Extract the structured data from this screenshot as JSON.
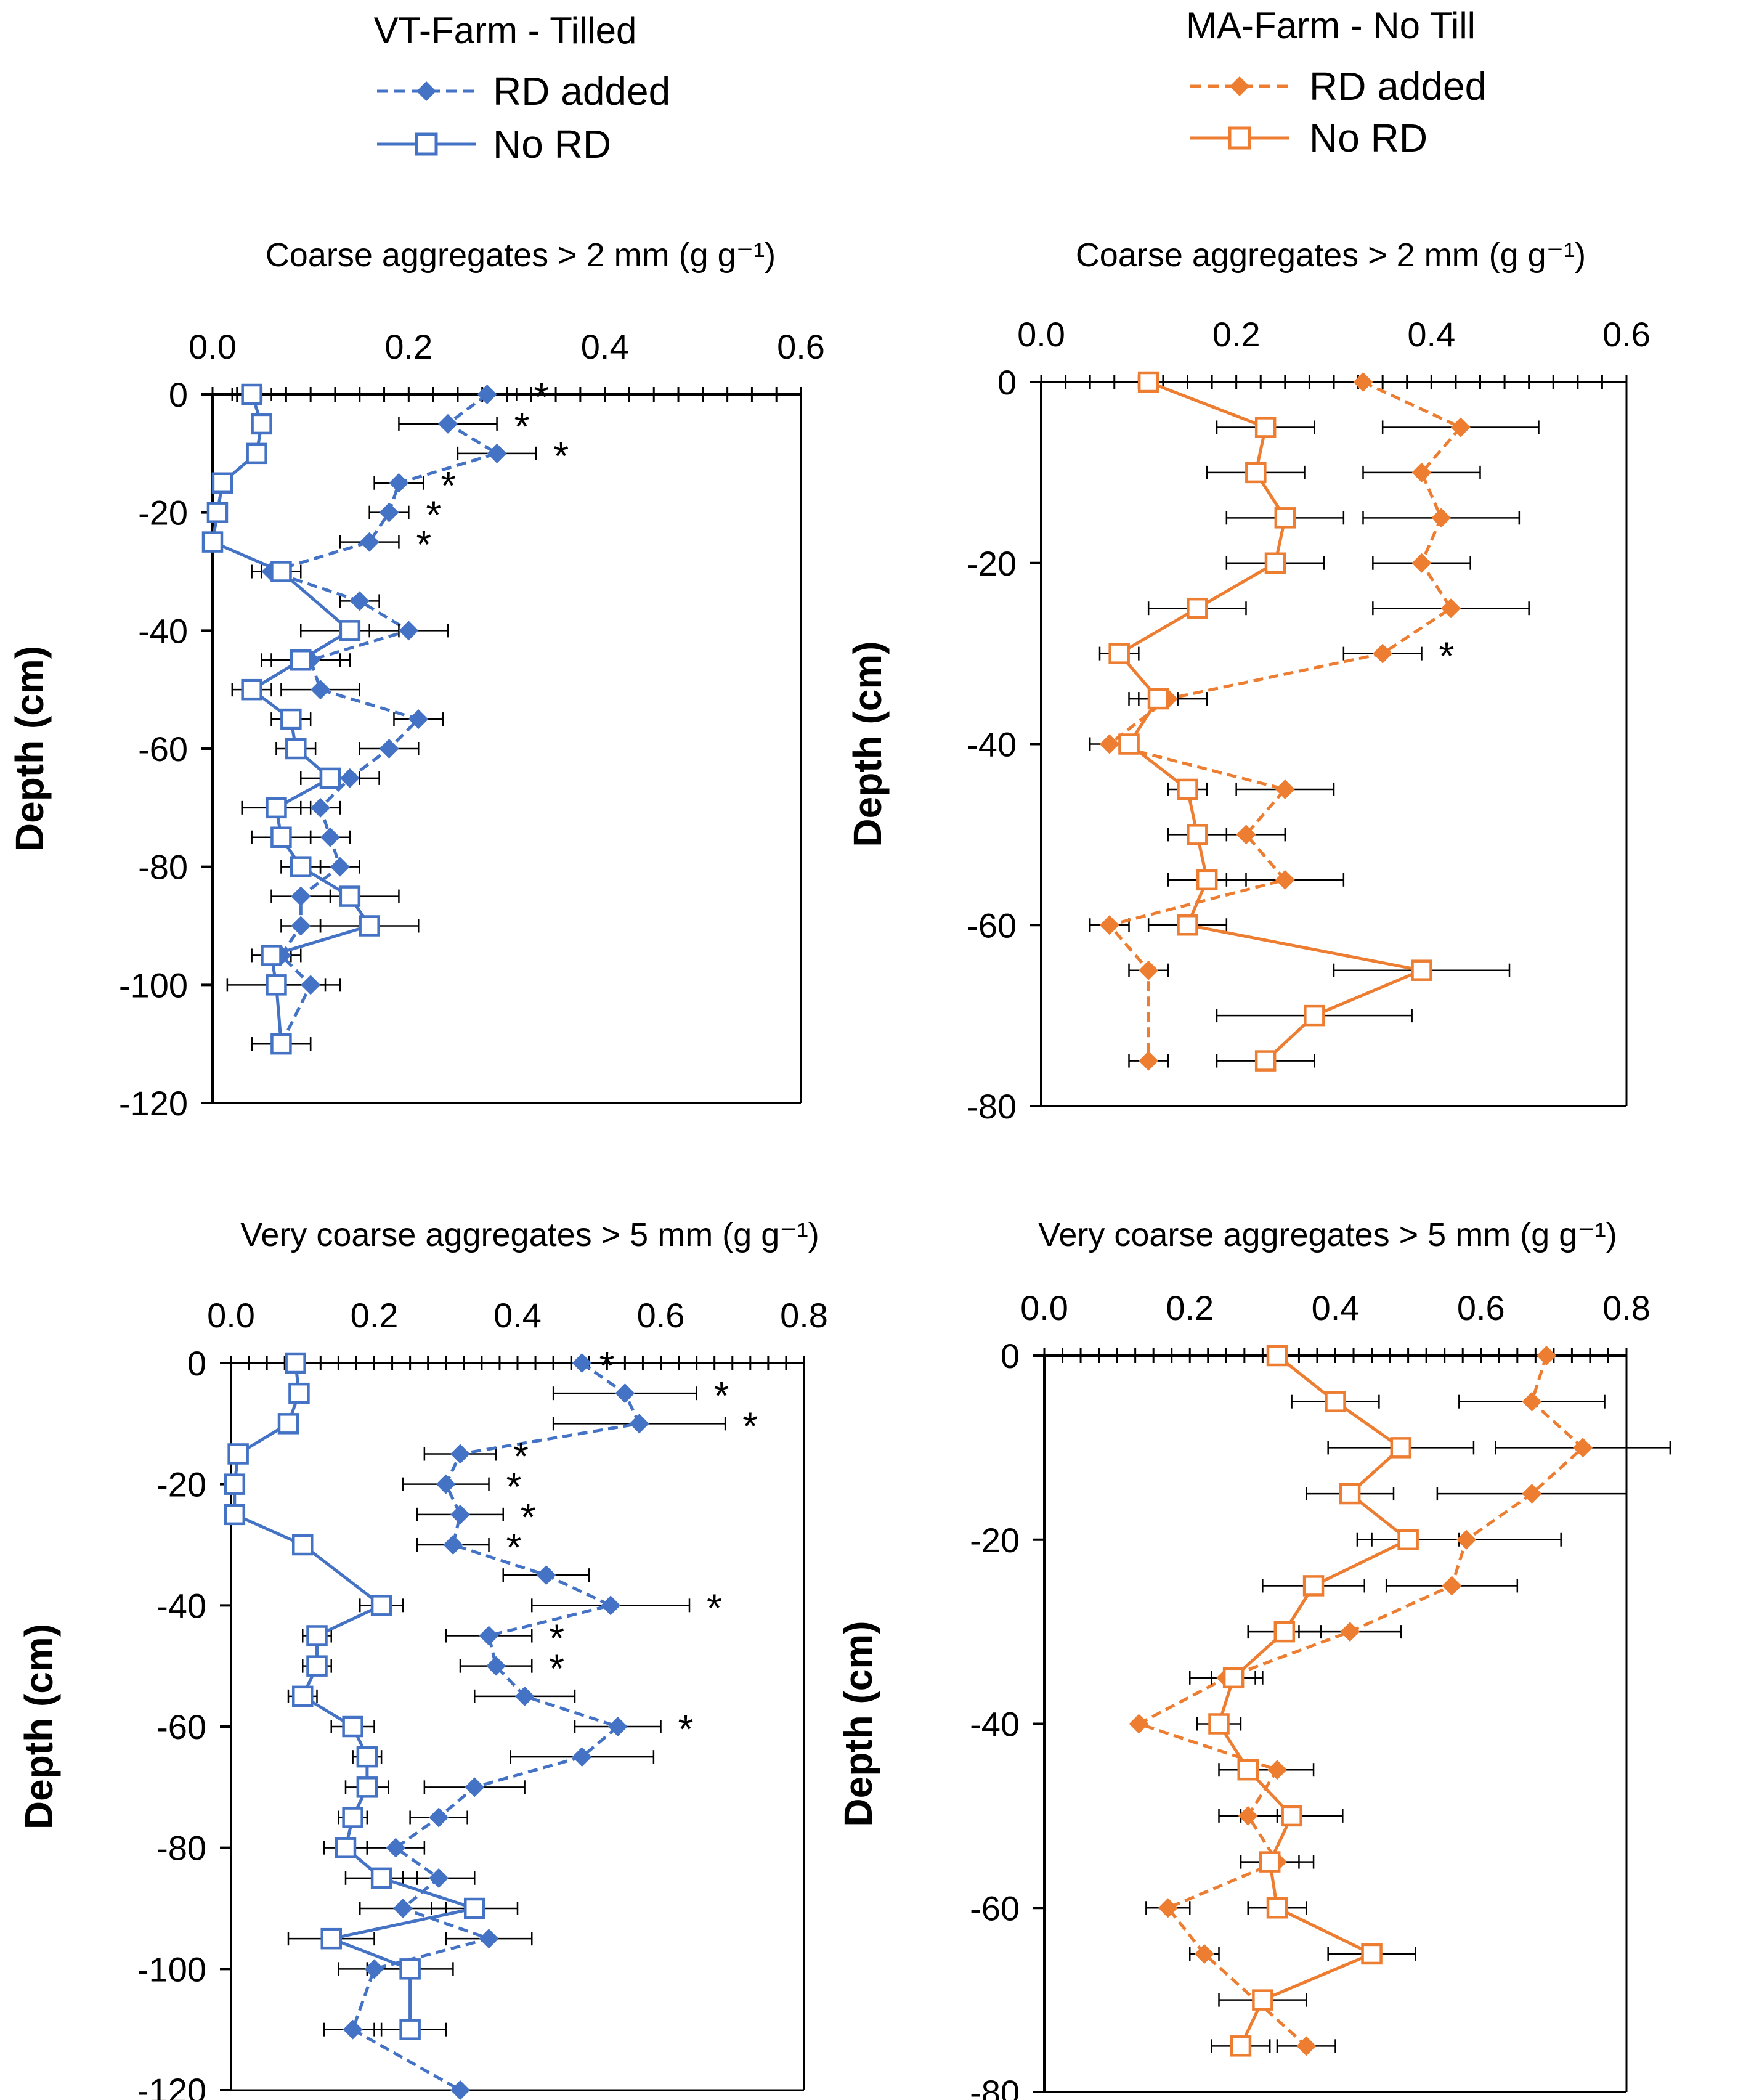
{
  "colors": {
    "vt": "#4472C4",
    "ma": "#ED7D31",
    "err": "#000000",
    "axis": "#000000"
  },
  "farms": [
    {
      "id": "vt",
      "title": "VT-Farm - Tilled",
      "color": "#4472C4",
      "legend": {
        "added": "RD added",
        "noRD": "No RD"
      }
    },
    {
      "id": "ma",
      "title": "MA-Farm - No Till",
      "color": "#ED7D31",
      "legend": {
        "added": "RD added",
        "noRD": "No RD"
      }
    }
  ],
  "chart_data": [
    {
      "id": "vt-coarse",
      "farm": "vt",
      "type": "line",
      "title": "Coarse aggregates > 2 mm (g g⁻¹)",
      "ylabel": "Depth (cm)",
      "xlim": [
        0,
        0.6
      ],
      "xticks": [
        0,
        0.2,
        0.4,
        0.6
      ],
      "xtick_labels": [
        "0.0",
        "0.2",
        "0.4",
        "0.6"
      ],
      "ylim": [
        -120,
        0
      ],
      "yticks": [
        0,
        -20,
        -40,
        -60,
        -80,
        -100,
        -120
      ],
      "ytick_labels": [
        "0",
        "-20",
        "-40",
        "-60",
        "-80",
        "-100",
        "-120"
      ],
      "series": [
        {
          "name": "RD added",
          "style": "dashed-diamond",
          "points": [
            [
              0.28,
              0,
              0.03
            ],
            [
              0.24,
              -5,
              0.05
            ],
            [
              0.29,
              -10,
              0.04
            ],
            [
              0.19,
              -15,
              0.025
            ],
            [
              0.18,
              -20,
              0.02
            ],
            [
              0.16,
              -25,
              0.03
            ],
            [
              0.06,
              -30,
              0.02
            ],
            [
              0.15,
              -35,
              0.02
            ],
            [
              0.2,
              -40,
              0.04
            ],
            [
              0.1,
              -45,
              0.04
            ],
            [
              0.11,
              -50,
              0.04
            ],
            [
              0.21,
              -55,
              0.025
            ],
            [
              0.18,
              -60,
              0.03
            ],
            [
              0.14,
              -65,
              0.03
            ],
            [
              0.11,
              -70,
              0.02
            ],
            [
              0.12,
              -75,
              0.02
            ],
            [
              0.13,
              -80,
              0.02
            ],
            [
              0.09,
              -85,
              0.03
            ],
            [
              0.09,
              -90,
              0.02
            ],
            [
              0.07,
              -95,
              0.02
            ],
            [
              0.1,
              -100,
              0.03
            ],
            [
              0.07,
              -110,
              0.03
            ]
          ]
        },
        {
          "name": "No RD",
          "style": "solid-square",
          "points": [
            [
              0.04,
              0,
              0.02
            ],
            [
              0.05,
              -5,
              0.01
            ],
            [
              0.045,
              -10,
              0.01
            ],
            [
              0.01,
              -15,
              0.005
            ],
            [
              0.005,
              -20,
              0.005
            ],
            [
              0.0,
              -25,
              0.005
            ],
            [
              0.07,
              -30,
              0.02
            ],
            [
              0.14,
              -40,
              0.05
            ],
            [
              0.09,
              -45,
              0.04
            ],
            [
              0.04,
              -50,
              0.02
            ],
            [
              0.08,
              -55,
              0.02
            ],
            [
              0.085,
              -60,
              0.02
            ],
            [
              0.12,
              -65,
              0.03
            ],
            [
              0.065,
              -70,
              0.035
            ],
            [
              0.07,
              -75,
              0.03
            ],
            [
              0.09,
              -80,
              0.02
            ],
            [
              0.14,
              -85,
              0.05
            ],
            [
              0.16,
              -90,
              0.05
            ],
            [
              0.06,
              -95,
              0.02
            ],
            [
              0.065,
              -100,
              0.05
            ],
            [
              0.07,
              -110,
              0.03
            ]
          ]
        }
      ],
      "significance": [
        0,
        -5,
        -10,
        -15,
        -20,
        -25
      ],
      "star_label": "*"
    },
    {
      "id": "ma-coarse",
      "farm": "ma",
      "type": "line",
      "title": "Coarse aggregates > 2 mm (g g⁻¹)",
      "ylabel": "Depth (cm)",
      "xlim": [
        0,
        0.6
      ],
      "xticks": [
        0,
        0.2,
        0.4,
        0.6
      ],
      "xtick_labels": [
        "0.0",
        "0.2",
        "0.4",
        "0.6"
      ],
      "ylim": [
        -80,
        0
      ],
      "yticks": [
        0,
        -20,
        -40,
        -60,
        -80
      ],
      "ytick_labels": [
        "0",
        "-20",
        "-40",
        "-60",
        "-80"
      ],
      "series": [
        {
          "name": "RD added",
          "style": "dashed-diamond",
          "points": [
            [
              0.33,
              0,
              0.0
            ],
            [
              0.43,
              -5,
              0.08
            ],
            [
              0.39,
              -10,
              0.06
            ],
            [
              0.41,
              -15,
              0.08
            ],
            [
              0.39,
              -20,
              0.05
            ],
            [
              0.42,
              -25,
              0.08
            ],
            [
              0.35,
              -30,
              0.04
            ],
            [
              0.13,
              -35,
              0.04
            ],
            [
              0.07,
              -40,
              0.02
            ],
            [
              0.25,
              -45,
              0.05
            ],
            [
              0.21,
              -50,
              0.04
            ],
            [
              0.25,
              -55,
              0.06
            ],
            [
              0.07,
              -60,
              0.02
            ],
            [
              0.11,
              -65,
              0.02
            ],
            [
              0.11,
              -75,
              0.02
            ]
          ]
        },
        {
          "name": "No RD",
          "style": "solid-square",
          "points": [
            [
              0.11,
              0,
              0.0
            ],
            [
              0.23,
              -5,
              0.05
            ],
            [
              0.22,
              -10,
              0.05
            ],
            [
              0.25,
              -15,
              0.06
            ],
            [
              0.24,
              -20,
              0.05
            ],
            [
              0.16,
              -25,
              0.05
            ],
            [
              0.08,
              -30,
              0.02
            ],
            [
              0.12,
              -35,
              0.02
            ],
            [
              0.09,
              -40,
              0.01
            ],
            [
              0.15,
              -45,
              0.02
            ],
            [
              0.16,
              -50,
              0.03
            ],
            [
              0.17,
              -55,
              0.04
            ],
            [
              0.15,
              -60,
              0.04
            ],
            [
              0.39,
              -65,
              0.09
            ],
            [
              0.28,
              -70,
              0.1
            ],
            [
              0.23,
              -75,
              0.05
            ]
          ]
        }
      ],
      "significance": [
        -30
      ],
      "star_label": "*"
    },
    {
      "id": "vt-very-coarse",
      "farm": "vt",
      "type": "line",
      "title": "Very coarse aggregates > 5 mm (g g⁻¹)",
      "ylabel": "Depth (cm)",
      "xlim": [
        0,
        0.8
      ],
      "xticks": [
        0,
        0.2,
        0.4,
        0.6,
        0.8
      ],
      "xtick_labels": [
        "0.0",
        "0.2",
        "0.4",
        "0.6",
        "0.8"
      ],
      "ylim": [
        -120,
        0
      ],
      "yticks": [
        0,
        -20,
        -40,
        -60,
        -80,
        -100,
        -120
      ],
      "ytick_labels": [
        "0",
        "-20",
        "-40",
        "-60",
        "-80",
        "-100",
        "-120"
      ],
      "series": [
        {
          "name": "RD added",
          "style": "dashed-diamond",
          "points": [
            [
              0.49,
              0,
              0.0
            ],
            [
              0.55,
              -5,
              0.1
            ],
            [
              0.57,
              -10,
              0.12
            ],
            [
              0.32,
              -15,
              0.05
            ],
            [
              0.3,
              -20,
              0.06
            ],
            [
              0.32,
              -25,
              0.06
            ],
            [
              0.31,
              -30,
              0.05
            ],
            [
              0.44,
              -35,
              0.06
            ],
            [
              0.53,
              -40,
              0.11
            ],
            [
              0.36,
              -45,
              0.06
            ],
            [
              0.37,
              -50,
              0.05
            ],
            [
              0.41,
              -55,
              0.07
            ],
            [
              0.54,
              -60,
              0.06
            ],
            [
              0.49,
              -65,
              0.1
            ],
            [
              0.34,
              -70,
              0.07
            ],
            [
              0.29,
              -75,
              0.04
            ],
            [
              0.23,
              -80,
              0.04
            ],
            [
              0.29,
              -85,
              0.05
            ],
            [
              0.24,
              -90,
              0.06
            ],
            [
              0.36,
              -95,
              0.06
            ],
            [
              0.2,
              -100,
              0.05
            ],
            [
              0.17,
              -110,
              0.04
            ],
            [
              0.32,
              -120,
              0.0
            ]
          ]
        },
        {
          "name": "No RD",
          "style": "solid-square",
          "points": [
            [
              0.09,
              0,
              0.0
            ],
            [
              0.095,
              -5,
              0.0
            ],
            [
              0.08,
              -10,
              0.01
            ],
            [
              0.01,
              -15,
              0.005
            ],
            [
              0.005,
              -20,
              0.005
            ],
            [
              0.005,
              -25,
              0.005
            ],
            [
              0.1,
              -30,
              0.01
            ],
            [
              0.21,
              -40,
              0.03
            ],
            [
              0.12,
              -45,
              0.02
            ],
            [
              0.12,
              -50,
              0.02
            ],
            [
              0.1,
              -55,
              0.02
            ],
            [
              0.17,
              -60,
              0.03
            ],
            [
              0.19,
              -65,
              0.02
            ],
            [
              0.19,
              -70,
              0.03
            ],
            [
              0.17,
              -75,
              0.02
            ],
            [
              0.16,
              -80,
              0.03
            ],
            [
              0.21,
              -85,
              0.05
            ],
            [
              0.34,
              -90,
              0.06
            ],
            [
              0.14,
              -95,
              0.06
            ],
            [
              0.25,
              -100,
              0.06
            ],
            [
              0.25,
              -110,
              0.05
            ]
          ]
        }
      ],
      "significance": [
        0,
        -5,
        -10,
        -15,
        -20,
        -25,
        -30,
        -40,
        -45,
        -50,
        -60
      ],
      "star_label": "*"
    },
    {
      "id": "ma-very-coarse",
      "farm": "ma",
      "type": "line",
      "title": "Very coarse aggregates > 5 mm (g g⁻¹)",
      "ylabel": "Depth (cm)",
      "xlim": [
        0,
        0.8
      ],
      "xticks": [
        0,
        0.2,
        0.4,
        0.6,
        0.8
      ],
      "xtick_labels": [
        "0.0",
        "0.2",
        "0.4",
        "0.6",
        "0.8"
      ],
      "ylim": [
        -80,
        0
      ],
      "yticks": [
        0,
        -20,
        -40,
        -60,
        -80
      ],
      "ytick_labels": [
        "0",
        "-20",
        "-40",
        "-60",
        "-80"
      ],
      "series": [
        {
          "name": "RD added",
          "style": "dashed-diamond",
          "points": [
            [
              0.69,
              0,
              0.0
            ],
            [
              0.67,
              -5,
              0.1
            ],
            [
              0.74,
              -10,
              0.12
            ],
            [
              0.67,
              -15,
              0.13
            ],
            [
              0.58,
              -20,
              0.13
            ],
            [
              0.56,
              -25,
              0.09
            ],
            [
              0.42,
              -30,
              0.07
            ],
            [
              0.25,
              -35,
              0.05
            ],
            [
              0.13,
              -40,
              0.0
            ],
            [
              0.32,
              -45,
              0.05
            ],
            [
              0.28,
              -50,
              0.04
            ],
            [
              0.32,
              -55,
              0.05
            ],
            [
              0.17,
              -60,
              0.03
            ],
            [
              0.22,
              -65,
              0.02
            ],
            [
              0.36,
              -75,
              0.04
            ]
          ]
        },
        {
          "name": "No RD",
          "style": "solid-square",
          "points": [
            [
              0.32,
              0,
              0.0
            ],
            [
              0.4,
              -5,
              0.06
            ],
            [
              0.49,
              -10,
              0.1
            ],
            [
              0.42,
              -15,
              0.06
            ],
            [
              0.5,
              -20,
              0.07
            ],
            [
              0.37,
              -25,
              0.07
            ],
            [
              0.33,
              -30,
              0.05
            ],
            [
              0.26,
              -35,
              0.03
            ],
            [
              0.24,
              -40,
              0.03
            ],
            [
              0.28,
              -45,
              0.04
            ],
            [
              0.34,
              -50,
              0.07
            ],
            [
              0.31,
              -55,
              0.04
            ],
            [
              0.32,
              -60,
              0.04
            ],
            [
              0.45,
              -65,
              0.06
            ],
            [
              0.3,
              -70,
              0.06
            ],
            [
              0.27,
              -75,
              0.04
            ]
          ]
        }
      ],
      "significance": [],
      "star_label": "*"
    }
  ]
}
